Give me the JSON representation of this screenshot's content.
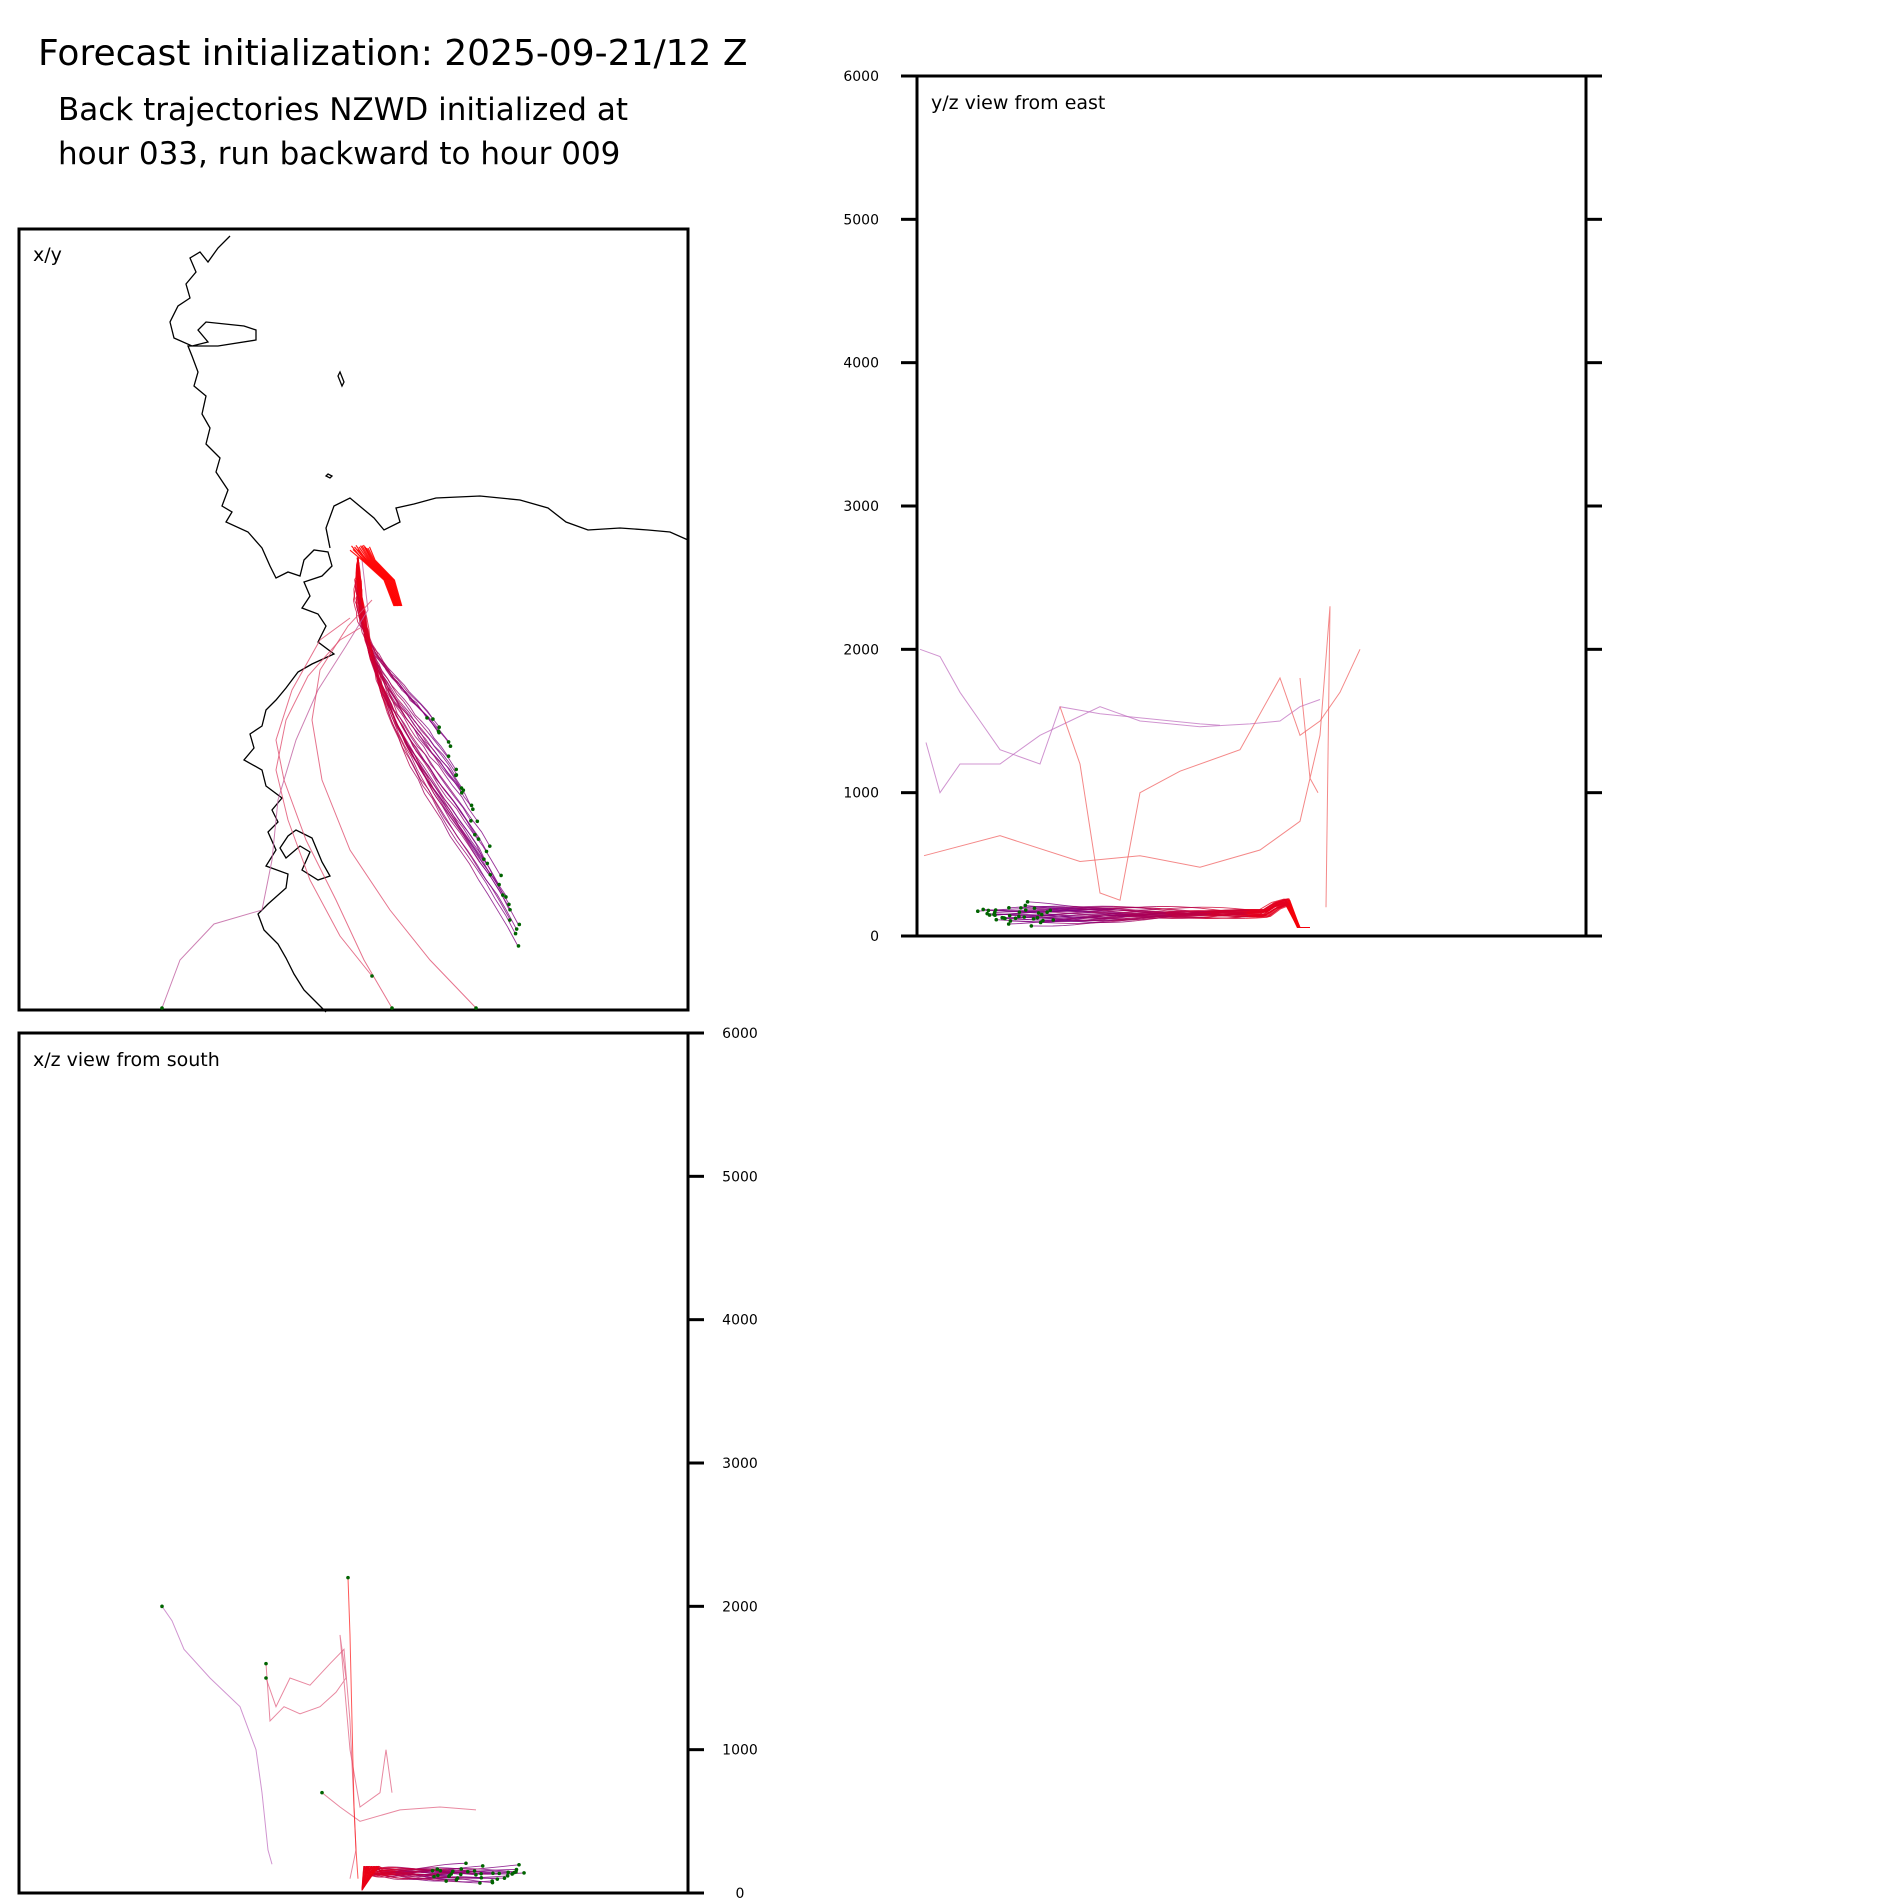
{
  "title": "Forecast initialization: 2025-09-21/12 Z",
  "subtitle_lines": [
    "Back trajectories NZWD initialized at",
    "hour 033, run backward to hour 009"
  ],
  "colors": {
    "early": "#800080",
    "late": "#ff0000",
    "endpoint": "#006400",
    "coast": "#000000",
    "frame": "#000000"
  },
  "chart_data": [
    {
      "id": "xy",
      "type": "line",
      "panel_label": "x/y",
      "grid": false,
      "has_coastline": true,
      "trajectories_drawn": "approx. 40 back trajectories, colored purple (hour 009) to red (hour 033)"
    },
    {
      "id": "yz",
      "type": "line",
      "panel_label": "y/z view from east",
      "ylim": [
        0,
        6000
      ],
      "yticks": [
        "0",
        "1000",
        "2000",
        "3000",
        "4000",
        "5000",
        "6000"
      ],
      "grid": false
    },
    {
      "id": "xz",
      "type": "line",
      "panel_label": "x/z view from south",
      "ylim": [
        0,
        6000
      ],
      "yticks": [
        "0",
        "1000",
        "2000",
        "3000",
        "4000",
        "5000",
        "6000"
      ],
      "grid": false
    }
  ]
}
